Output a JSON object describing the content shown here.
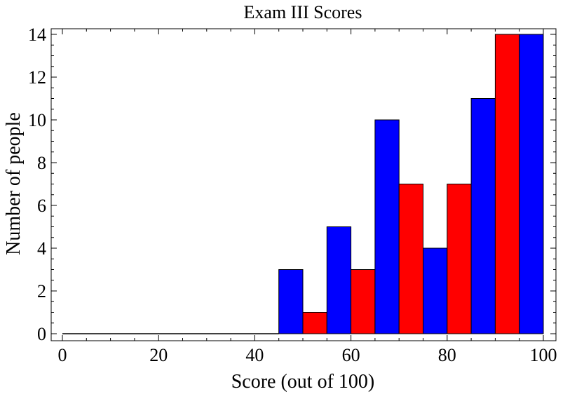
{
  "chart_data": {
    "type": "bar",
    "title": "Exam III Scores",
    "xlabel": "Score (out of 100)",
    "ylabel": "Number of people",
    "xlim": [
      0,
      100
    ],
    "ylim": [
      0,
      14
    ],
    "xticks": [
      "0",
      "20",
      "40",
      "60",
      "80",
      "100"
    ],
    "yticks": [
      "0",
      "2",
      "4",
      "6",
      "8",
      "10",
      "12",
      "14"
    ],
    "grid": false,
    "colors": {
      "blue": "#0000ff",
      "red": "#ff0000"
    },
    "zero_baseline": {
      "from": 0,
      "to": 45
    },
    "bins": [
      {
        "start": 45,
        "end": 50,
        "value": 3,
        "color": "blue"
      },
      {
        "start": 50,
        "end": 55,
        "value": 1,
        "color": "red"
      },
      {
        "start": 55,
        "end": 60,
        "value": 5,
        "color": "blue"
      },
      {
        "start": 60,
        "end": 65,
        "value": 3,
        "color": "red"
      },
      {
        "start": 65,
        "end": 70,
        "value": 10,
        "color": "blue"
      },
      {
        "start": 70,
        "end": 75,
        "value": 7,
        "color": "red"
      },
      {
        "start": 75,
        "end": 80,
        "value": 4,
        "color": "blue"
      },
      {
        "start": 80,
        "end": 85,
        "value": 7,
        "color": "red"
      },
      {
        "start": 85,
        "end": 90,
        "value": 11,
        "color": "blue"
      },
      {
        "start": 90,
        "end": 95,
        "value": 14,
        "color": "red"
      },
      {
        "start": 95,
        "end": 100,
        "value": 14,
        "color": "blue"
      }
    ]
  }
}
